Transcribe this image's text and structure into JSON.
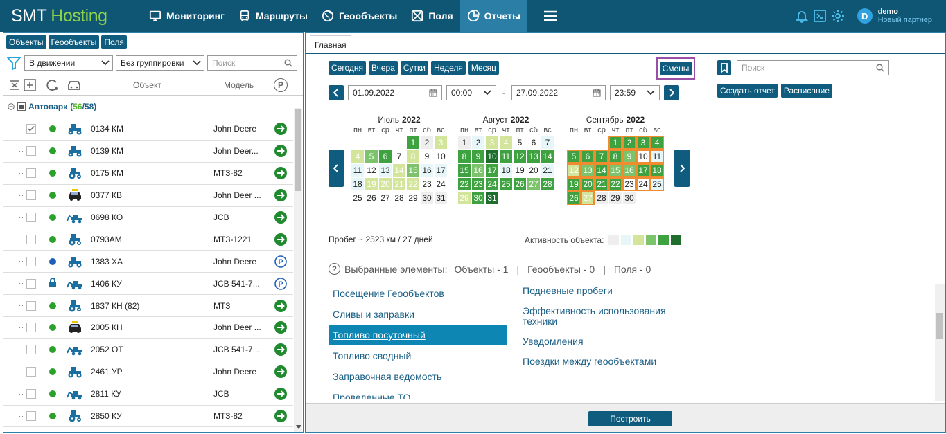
{
  "header": {
    "logo_a": "SMT ",
    "logo_b": "Hosting",
    "nav": [
      {
        "label": "Мониторинг",
        "icon": "monitor-icon"
      },
      {
        "label": "Маршруты",
        "icon": "bus-icon"
      },
      {
        "label": "Геообъекты",
        "icon": "globe-icon"
      },
      {
        "label": "Поля",
        "icon": "field-icon"
      },
      {
        "label": "Отчеты",
        "icon": "reports-icon"
      }
    ],
    "user_name": "demo",
    "user_role": "Новый партнер",
    "avatar_letter": "D"
  },
  "left": {
    "tabs": [
      "Объекты",
      "Геообъекты",
      "Поля"
    ],
    "filter_motion": "В движении",
    "filter_group": "Без группировки",
    "search_placeholder": "Поиск",
    "col_object": "Объект",
    "col_model": "Модель",
    "col_parking": "P",
    "fleet_name": "Автопарк",
    "fleet_count_a": "56",
    "fleet_count_b": "58",
    "rows": [
      {
        "name": "0134 КМ",
        "model": "John Deere",
        "dot": "#2ba02b",
        "veh": "tractor",
        "status": "go",
        "checked": true
      },
      {
        "name": "0139 КМ",
        "model": "John Deer...",
        "dot": "#2ba02b",
        "veh": "tractor",
        "status": "go"
      },
      {
        "name": "0175 КМ",
        "model": "МТЗ-82",
        "dot": "#2ba02b",
        "veh": "tractor-small",
        "status": "go"
      },
      {
        "name": "0377 КВ",
        "model": "John Deer ...",
        "dot": "#2ba02b",
        "veh": "taxi",
        "status": "go"
      },
      {
        "name": "0698 КО",
        "model": "JCB",
        "dot": "#2ba02b",
        "veh": "excavator",
        "status": "go"
      },
      {
        "name": "0793АМ",
        "model": "МТЗ-1221",
        "dot": "#2ba02b",
        "veh": "tractor-small",
        "status": "go"
      },
      {
        "name": "1383 ХА",
        "model": "John Deere",
        "dot": "#1f5fb8",
        "veh": "tractor",
        "status": "park"
      },
      {
        "name": "1406 КУ",
        "model": "JCB 541-7...",
        "dot": "lock",
        "veh": "excavator",
        "status": "park",
        "strike": true
      },
      {
        "name": "1837 КН (82)",
        "model": "МТЗ",
        "dot": "#2ba02b",
        "veh": "tractor-small",
        "status": "go"
      },
      {
        "name": "2005 КН",
        "model": "John Deer ...",
        "dot": "#2ba02b",
        "veh": "taxi",
        "status": "go"
      },
      {
        "name": "2052 ОТ",
        "model": "JCB 541-7...",
        "dot": "#2ba02b",
        "veh": "excavator",
        "status": "go"
      },
      {
        "name": "2461 УР",
        "model": "John Deere",
        "dot": "#2ba02b",
        "veh": "tractor",
        "status": "go"
      },
      {
        "name": "2811 КУ",
        "model": "JCB",
        "dot": "#2ba02b",
        "veh": "excavator",
        "status": "go"
      },
      {
        "name": "2850 КУ",
        "model": "МТЗ-82",
        "dot": "#2ba02b",
        "veh": "tractor-small",
        "status": "go"
      }
    ]
  },
  "right": {
    "tab": "Главная",
    "quick": [
      "Сегодня",
      "Вчера",
      "Сутки",
      "Неделя",
      "Месяц"
    ],
    "shifts": "Смены",
    "date_from": "01.09.2022",
    "time_from": "00:00",
    "date_dash": "-",
    "date_to": "27.09.2022",
    "time_to": "23:59",
    "weekdays": [
      "пн",
      "вт",
      "ср",
      "чт",
      "пт",
      "сб",
      "вс"
    ],
    "months": [
      {
        "name": "Июль",
        "year": "2022",
        "offset": 4,
        "days": [
          [
            1,
            5
          ],
          [
            2,
            1
          ],
          [
            3,
            3
          ],
          [
            4,
            3
          ],
          [
            5,
            4
          ],
          [
            6,
            5
          ],
          [
            7,
            0
          ],
          [
            8,
            3
          ],
          [
            9,
            0
          ],
          [
            10,
            0
          ],
          [
            11,
            2
          ],
          [
            12,
            0
          ],
          [
            13,
            2
          ],
          [
            14,
            3
          ],
          [
            15,
            4
          ],
          [
            16,
            2
          ],
          [
            17,
            2
          ],
          [
            18,
            2
          ],
          [
            19,
            3
          ],
          [
            20,
            3
          ],
          [
            21,
            3
          ],
          [
            22,
            3
          ],
          [
            23,
            0
          ],
          [
            24,
            0
          ],
          [
            25,
            0
          ],
          [
            26,
            0
          ],
          [
            27,
            0
          ],
          [
            28,
            0
          ],
          [
            29,
            0
          ],
          [
            30,
            1
          ],
          [
            31,
            1
          ]
        ]
      },
      {
        "name": "Август",
        "year": "2022",
        "offset": 0,
        "days": [
          [
            1,
            1
          ],
          [
            2,
            2
          ],
          [
            3,
            3
          ],
          [
            4,
            3
          ],
          [
            5,
            0
          ],
          [
            6,
            0
          ],
          [
            7,
            2
          ],
          [
            8,
            5
          ],
          [
            9,
            5
          ],
          [
            10,
            6
          ],
          [
            11,
            5
          ],
          [
            12,
            5
          ],
          [
            13,
            5
          ],
          [
            14,
            5
          ],
          [
            15,
            5
          ],
          [
            16,
            4
          ],
          [
            17,
            5
          ],
          [
            18,
            2
          ],
          [
            19,
            0
          ],
          [
            20,
            0
          ],
          [
            21,
            2
          ],
          [
            22,
            5
          ],
          [
            23,
            5
          ],
          [
            24,
            5
          ],
          [
            25,
            5
          ],
          [
            26,
            5
          ],
          [
            27,
            4
          ],
          [
            28,
            5
          ],
          [
            29,
            3
          ],
          [
            30,
            5
          ],
          [
            31,
            6
          ]
        ]
      },
      {
        "name": "Сентябрь",
        "year": "2022",
        "offset": 3,
        "days": [
          [
            1,
            5
          ],
          [
            2,
            5
          ],
          [
            3,
            5
          ],
          [
            4,
            5
          ],
          [
            5,
            5
          ],
          [
            6,
            5
          ],
          [
            7,
            5
          ],
          [
            8,
            5
          ],
          [
            9,
            4
          ],
          [
            10,
            0
          ],
          [
            11,
            2
          ],
          [
            12,
            3
          ],
          [
            13,
            4
          ],
          [
            14,
            5
          ],
          [
            15,
            4
          ],
          [
            16,
            4
          ],
          [
            17,
            5
          ],
          [
            18,
            5
          ],
          [
            19,
            5
          ],
          [
            20,
            5
          ],
          [
            21,
            5
          ],
          [
            22,
            5
          ],
          [
            23,
            0
          ],
          [
            24,
            0
          ],
          [
            25,
            2
          ],
          [
            26,
            5
          ],
          [
            27,
            3
          ],
          [
            28,
            1
          ],
          [
            29,
            1
          ],
          [
            30,
            1
          ]
        ]
      }
    ],
    "selected_days": 27,
    "mileage": "Пробег ~ 2523 км / 27 дней",
    "activity_label": "Активность объекта:",
    "activity_colors": [
      "#eeeeee",
      "#e6f6f9",
      "#d3e59a",
      "#7dc36c",
      "#3ea240",
      "#1e6e2d"
    ],
    "selected_label": "Выбранные элементы:",
    "sel_objects": "Объекты - 1",
    "sel_geo": "Геообъекты - 0",
    "sel_fields": "Поля - 0",
    "sep": "|",
    "reports_left": [
      "Посещение Геообъектов",
      "Сливы и заправки",
      "Топливо посуточный",
      "Топливо сводный",
      "Заправочная ведомость",
      "Проведенные ТО"
    ],
    "reports_right": [
      "Подневные пробеги",
      "Эффективность использования техники",
      "Уведомления",
      "Поездки между геообъектами"
    ],
    "search_placeholder": "Поиск",
    "create_report": "Создать отчет",
    "schedule": "Расписание",
    "build": "Построить"
  }
}
